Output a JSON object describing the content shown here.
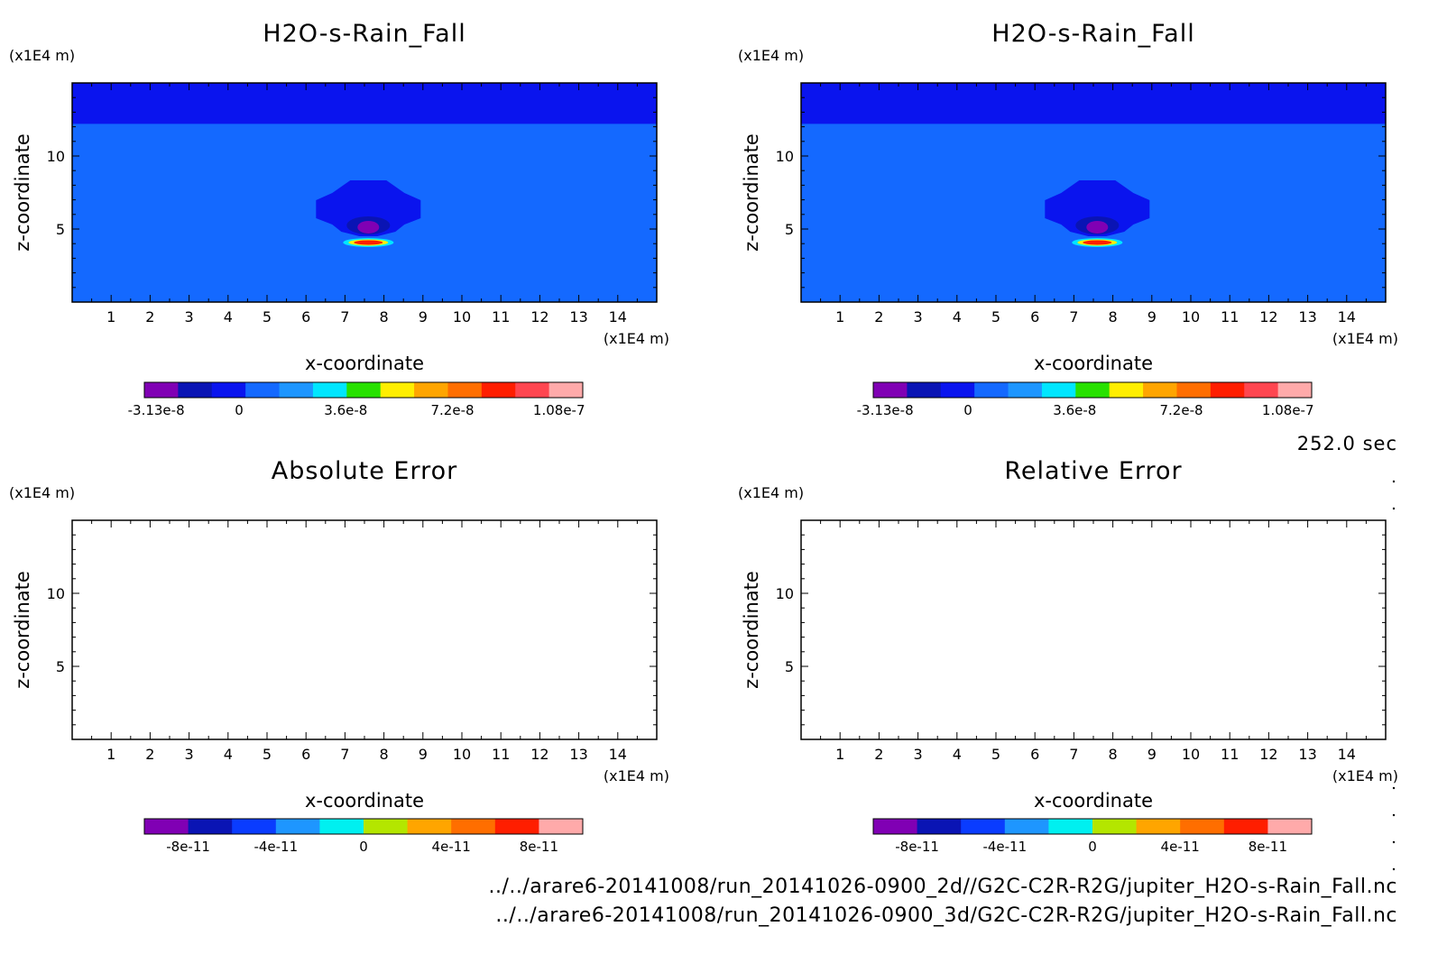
{
  "chart_data": [
    {
      "type": "heatmap",
      "title": "H2O-s-Rain_Fall",
      "xlabel": "x-coordinate",
      "ylabel": "z-coordinate",
      "x_unit": "(x1E4 m)",
      "y_unit": "(x1E4 m)",
      "x_ticks": [
        "1",
        "2",
        "3",
        "4",
        "5",
        "6",
        "7",
        "8",
        "9",
        "10",
        "11",
        "12",
        "13",
        "14"
      ],
      "y_ticks": [
        "5",
        "10"
      ],
      "xlim": [
        0,
        15
      ],
      "ylim": [
        0,
        15
      ],
      "background_color": "#1469ff",
      "top_band": {
        "z_from": 12.2,
        "z_to": 15,
        "color": "#0a14ee"
      },
      "feature": {
        "x_center": 7.6,
        "z_center": 4.2
      },
      "colorbar_ticks": [
        "-3.13e-8",
        "0",
        "3.6e-8",
        "7.2e-8",
        "1.08e-7"
      ],
      "colorbar_colors": [
        "#8000b4",
        "#0a14b4",
        "#0a14ee",
        "#1469ff",
        "#1e96ff",
        "#00e6ff",
        "#28e100",
        "#ffee00",
        "#ffa500",
        "#ff6e00",
        "#ff1e00",
        "#ff4650",
        "#ffaaaa"
      ]
    },
    {
      "type": "heatmap",
      "title": "H2O-s-Rain_Fall",
      "xlabel": "x-coordinate",
      "ylabel": "z-coordinate",
      "x_unit": "(x1E4 m)",
      "y_unit": "(x1E4 m)",
      "x_ticks": [
        "1",
        "2",
        "3",
        "4",
        "5",
        "6",
        "7",
        "8",
        "9",
        "10",
        "11",
        "12",
        "13",
        "14"
      ],
      "y_ticks": [
        "5",
        "10"
      ],
      "xlim": [
        0,
        15
      ],
      "ylim": [
        0,
        15
      ],
      "background_color": "#1469ff",
      "top_band": {
        "z_from": 12.2,
        "z_to": 15,
        "color": "#0a14ee"
      },
      "feature": {
        "x_center": 7.6,
        "z_center": 4.2
      },
      "colorbar_ticks": [
        "-3.13e-8",
        "0",
        "3.6e-8",
        "7.2e-8",
        "1.08e-7"
      ],
      "colorbar_colors": [
        "#8000b4",
        "#0a14b4",
        "#0a14ee",
        "#1469ff",
        "#1e96ff",
        "#00e6ff",
        "#28e100",
        "#ffee00",
        "#ffa500",
        "#ff6e00",
        "#ff1e00",
        "#ff4650",
        "#ffaaaa"
      ]
    },
    {
      "type": "heatmap",
      "title": "Absolute Error",
      "xlabel": "x-coordinate",
      "ylabel": "z-coordinate",
      "x_unit": "(x1E4 m)",
      "y_unit": "(x1E4 m)",
      "x_ticks": [
        "1",
        "2",
        "3",
        "4",
        "5",
        "6",
        "7",
        "8",
        "9",
        "10",
        "11",
        "12",
        "13",
        "14"
      ],
      "y_ticks": [
        "5",
        "10"
      ],
      "xlim": [
        0,
        15
      ],
      "ylim": [
        0,
        15
      ],
      "background_color": "#ffffff",
      "colorbar_ticks": [
        "-8e-11",
        "-4e-11",
        "0",
        "4e-11",
        "8e-11"
      ],
      "colorbar_colors": [
        "#8000b4",
        "#0a14b4",
        "#0a3cff",
        "#1e96ff",
        "#00f0f0",
        "#b4e600",
        "#ffa500",
        "#ff6e00",
        "#ff1e00",
        "#ffaaaa"
      ]
    },
    {
      "type": "heatmap",
      "title": "Relative Error",
      "xlabel": "x-coordinate",
      "ylabel": "z-coordinate",
      "x_unit": "(x1E4 m)",
      "y_unit": "(x1E4 m)",
      "x_ticks": [
        "1",
        "2",
        "3",
        "4",
        "5",
        "6",
        "7",
        "8",
        "9",
        "10",
        "11",
        "12",
        "13",
        "14"
      ],
      "y_ticks": [
        "5",
        "10"
      ],
      "xlim": [
        0,
        15
      ],
      "ylim": [
        0,
        15
      ],
      "background_color": "#ffffff",
      "colorbar_ticks": [
        "-8e-11",
        "-4e-11",
        "0",
        "4e-11",
        "8e-11"
      ],
      "colorbar_colors": [
        "#8000b4",
        "#0a14b4",
        "#0a3cff",
        "#1e96ff",
        "#00f0f0",
        "#b4e600",
        "#ffa500",
        "#ff6e00",
        "#ff1e00",
        "#ffaaaa"
      ]
    }
  ],
  "time_label": "252.0 sec",
  "file_paths": [
    "../../arare6-20141008/run_20141026-0900_2d//G2C-C2R-R2G/jupiter_H2O-s-Rain_Fall.nc",
    "../../arare6-20141008/run_20141026-0900_3d/G2C-C2R-R2G/jupiter_H2O-s-Rain_Fall.nc"
  ]
}
